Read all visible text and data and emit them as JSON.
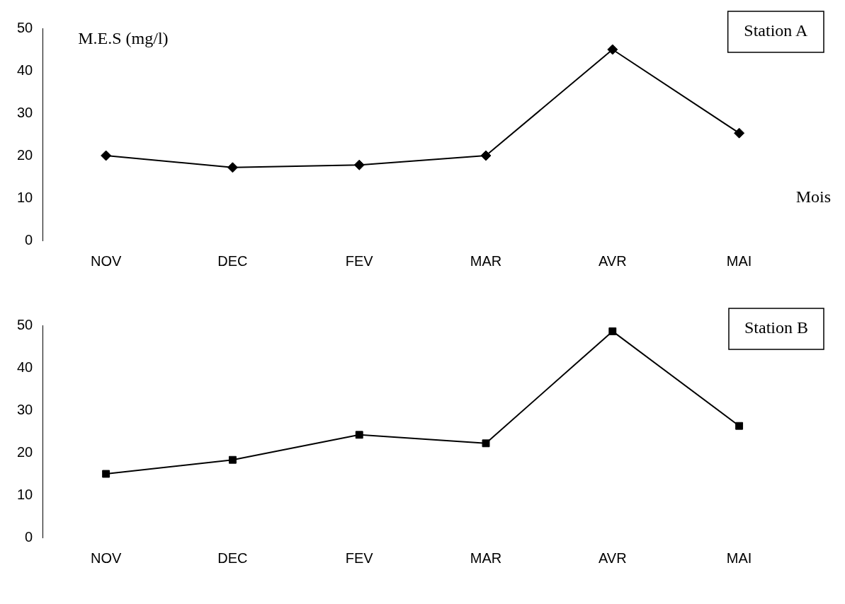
{
  "chart_data": [
    {
      "type": "line",
      "title": "Station A",
      "ylabel": "M.E.S (mg/l)",
      "xlabel": "Mois",
      "categories": [
        "NOV",
        "DEC",
        "FEV",
        "MAR",
        "AVR",
        "MAI"
      ],
      "series": [
        {
          "color": "#000000",
          "values": [
            20,
            17.2,
            17.8,
            20,
            45,
            25.3
          ]
        }
      ],
      "ylim": [
        0,
        50
      ],
      "yticks": [
        0,
        10,
        20,
        30,
        40,
        50
      ],
      "grid": false,
      "legend": false,
      "marker": "diamond",
      "line_style": "solid"
    },
    {
      "type": "line",
      "title": "Station B",
      "categories": [
        "NOV",
        "DEC",
        "FEV",
        "MAR",
        "AVR",
        "MAI"
      ],
      "series": [
        {
          "color": "#000000",
          "values": [
            15,
            18.3,
            24.2,
            22.2,
            48.6,
            26.3
          ]
        }
      ],
      "ylim": [
        0,
        50
      ],
      "yticks": [
        0,
        10,
        20,
        30,
        40,
        50
      ],
      "grid": false,
      "legend": false,
      "marker": "square",
      "line_style": "solid"
    }
  ]
}
